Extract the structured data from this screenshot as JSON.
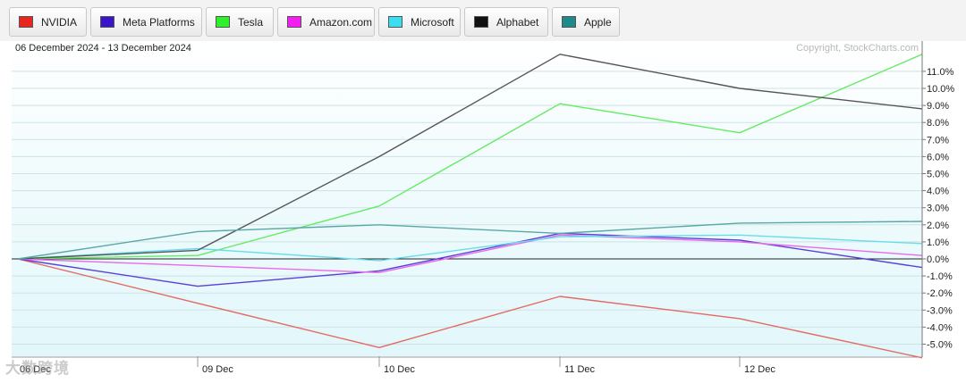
{
  "legend": [
    {
      "name": "NVIDIA",
      "color": "#e8261e"
    },
    {
      "name": "Meta Platforms",
      "color": "#3a14c8"
    },
    {
      "name": "Tesla",
      "color": "#2ef02b"
    },
    {
      "name": "Amazon.com",
      "color": "#f21ef2"
    },
    {
      "name": "Microsoft",
      "color": "#37dff0"
    },
    {
      "name": "Alphabet",
      "color": "#111111"
    },
    {
      "name": "Apple",
      "color": "#1f8a8c"
    }
  ],
  "watermark": "大数跨境",
  "chart_data": {
    "type": "line",
    "subtitle": "06 December 2024 - 13 December 2024",
    "copyright": "Copyright, StockCharts.com",
    "x": [
      "06 Dec",
      "09 Dec",
      "10 Dec",
      "11 Dec",
      "12 Dec",
      "13 Dec"
    ],
    "x_tick_labels": [
      "06 Dec",
      "09 Dec",
      "10 Dec",
      "11 Dec",
      "12 Dec"
    ],
    "y_ticks": [
      11,
      10,
      9,
      8,
      7,
      6,
      5,
      4,
      3,
      2,
      1,
      0,
      -1,
      -2,
      -3,
      -4,
      -5
    ],
    "y_tick_labels": [
      "11.0%",
      "10.0%",
      "9.0%",
      "8.0%",
      "7.0%",
      "6.0%",
      "5.0%",
      "4.0%",
      "3.0%",
      "2.0%",
      "1.0%",
      "0.0%",
      "-1.0%",
      "-2.0%",
      "-3.0%",
      "-4.0%",
      "-5.0%"
    ],
    "ylim": [
      -5.8,
      12.2
    ],
    "y_unit": "%",
    "grid": true,
    "series": [
      {
        "name": "NVIDIA",
        "color": "#e36a62",
        "values": [
          0,
          -2.6,
          -5.2,
          -2.2,
          -3.5,
          -5.8
        ]
      },
      {
        "name": "Meta Platforms",
        "color": "#5a3fd8",
        "values": [
          0,
          -1.6,
          -0.7,
          1.5,
          1.1,
          -0.5
        ]
      },
      {
        "name": "Tesla",
        "color": "#66ea63",
        "values": [
          0,
          0.2,
          3.1,
          9.1,
          7.4,
          12.0
        ]
      },
      {
        "name": "Amazon.com",
        "color": "#e86ae8",
        "values": [
          0,
          -0.4,
          -0.8,
          1.4,
          1.0,
          0.2
        ]
      },
      {
        "name": "Microsoft",
        "color": "#68dcea",
        "values": [
          0,
          0.6,
          -0.1,
          1.3,
          1.4,
          0.9
        ]
      },
      {
        "name": "Alphabet",
        "color": "#555555",
        "values": [
          0,
          0.5,
          6.0,
          12.0,
          10.0,
          8.8
        ]
      },
      {
        "name": "Apple",
        "color": "#58a8a6",
        "values": [
          0,
          1.6,
          2.0,
          1.5,
          2.1,
          2.2
        ]
      }
    ]
  }
}
